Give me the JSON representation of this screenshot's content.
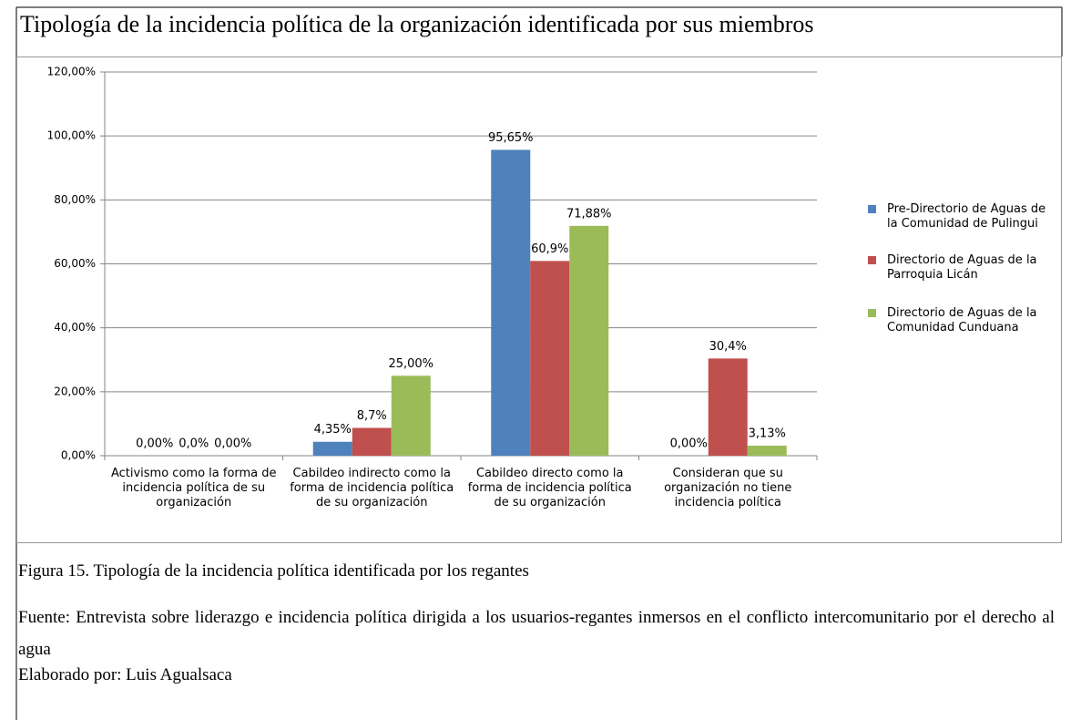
{
  "chart_data": {
    "type": "bar",
    "title": "Tipología de la incidencia política de la organización identificada por sus miembros",
    "categories": [
      "Activismo como la forma de incidencia política de su organización",
      "Cabildeo indirecto como la forma de incidencia política de su organización",
      "Cabildeo directo como la forma de incidencia política de su organización",
      "Consideran que su organización no tiene incidencia política"
    ],
    "series": [
      {
        "name": "Pre-Directorio de Aguas de la Comunidad de Pulingui",
        "color": "#4f81bd",
        "values": [
          0,
          4.35,
          95.65,
          0
        ],
        "value_labels": [
          "0,00%",
          "4,35%",
          "95,65%",
          "0,00%"
        ]
      },
      {
        "name": "Directorio de Aguas de la Parroquia Licán",
        "color": "#c0504d",
        "values": [
          0,
          8.7,
          60.9,
          30.4
        ],
        "value_labels": [
          "0,0%",
          "8,7%",
          "60,9%",
          "30,4%"
        ]
      },
      {
        "name": "Directorio de Aguas de la Comunidad Cunduana",
        "color": "#9bbb59",
        "values": [
          0,
          25,
          71.88,
          3.13
        ],
        "value_labels": [
          "0,00%",
          "25,00%",
          "71,88%",
          "3,13%"
        ]
      }
    ],
    "ylim": [
      0,
      120
    ],
    "yticks": [
      {
        "value": 0,
        "label": "0,00%"
      },
      {
        "value": 20,
        "label": "20,00%"
      },
      {
        "value": 40,
        "label": "40,00%"
      },
      {
        "value": 60,
        "label": "60,00%"
      },
      {
        "value": 80,
        "label": "80,00%"
      },
      {
        "value": 100,
        "label": "100,00%"
      },
      {
        "value": 120,
        "label": "120,00%"
      }
    ],
    "grid": true,
    "legend": "right"
  },
  "figure_caption": "Figura 15. Tipología de la incidencia política identificada por los regantes",
  "source": "Fuente: Entrevista sobre liderazgo e incidencia política dirigida a los usuarios-regantes inmersos en el conflicto intercomunitario por el derecho al agua",
  "author": "Elaborado por: Luis Agualsaca"
}
